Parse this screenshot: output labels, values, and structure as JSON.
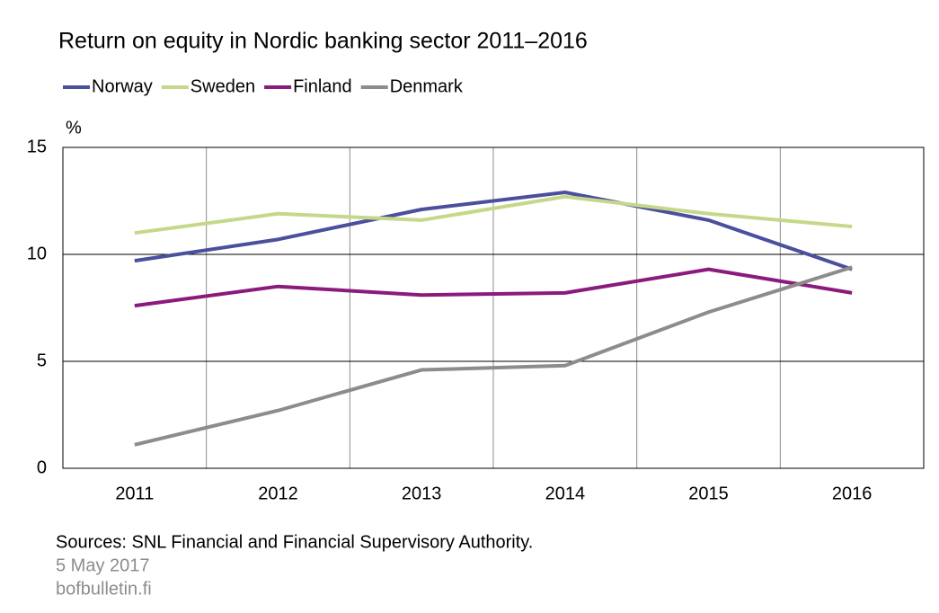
{
  "chart_data": {
    "type": "line",
    "title": "Return on equity in Nordic banking sector 2011–2016",
    "y_label": "%",
    "categories": [
      "2011",
      "2012",
      "2013",
      "2014",
      "2015",
      "2016"
    ],
    "series": [
      {
        "name": "Norway",
        "color": "#4a4f9e",
        "values": [
          9.7,
          10.7,
          12.1,
          12.9,
          11.6,
          9.3
        ]
      },
      {
        "name": "Sweden",
        "color": "#c5d88a",
        "values": [
          11.0,
          11.9,
          11.6,
          12.7,
          11.9,
          11.3
        ]
      },
      {
        "name": "Finland",
        "color": "#8b1a7d",
        "values": [
          7.6,
          8.5,
          8.1,
          8.2,
          9.3,
          8.2
        ]
      },
      {
        "name": "Denmark",
        "color": "#8c8c8c",
        "values": [
          1.1,
          2.7,
          4.6,
          4.8,
          7.3,
          9.4
        ]
      }
    ],
    "ylim": [
      0,
      15
    ],
    "yticks": [
      0,
      5,
      10,
      15
    ],
    "grid": true,
    "source": "Sources: SNL Financial and Financial Supervisory Authority.",
    "date": "5 May 2017",
    "website": "bofbulletin.fi"
  }
}
